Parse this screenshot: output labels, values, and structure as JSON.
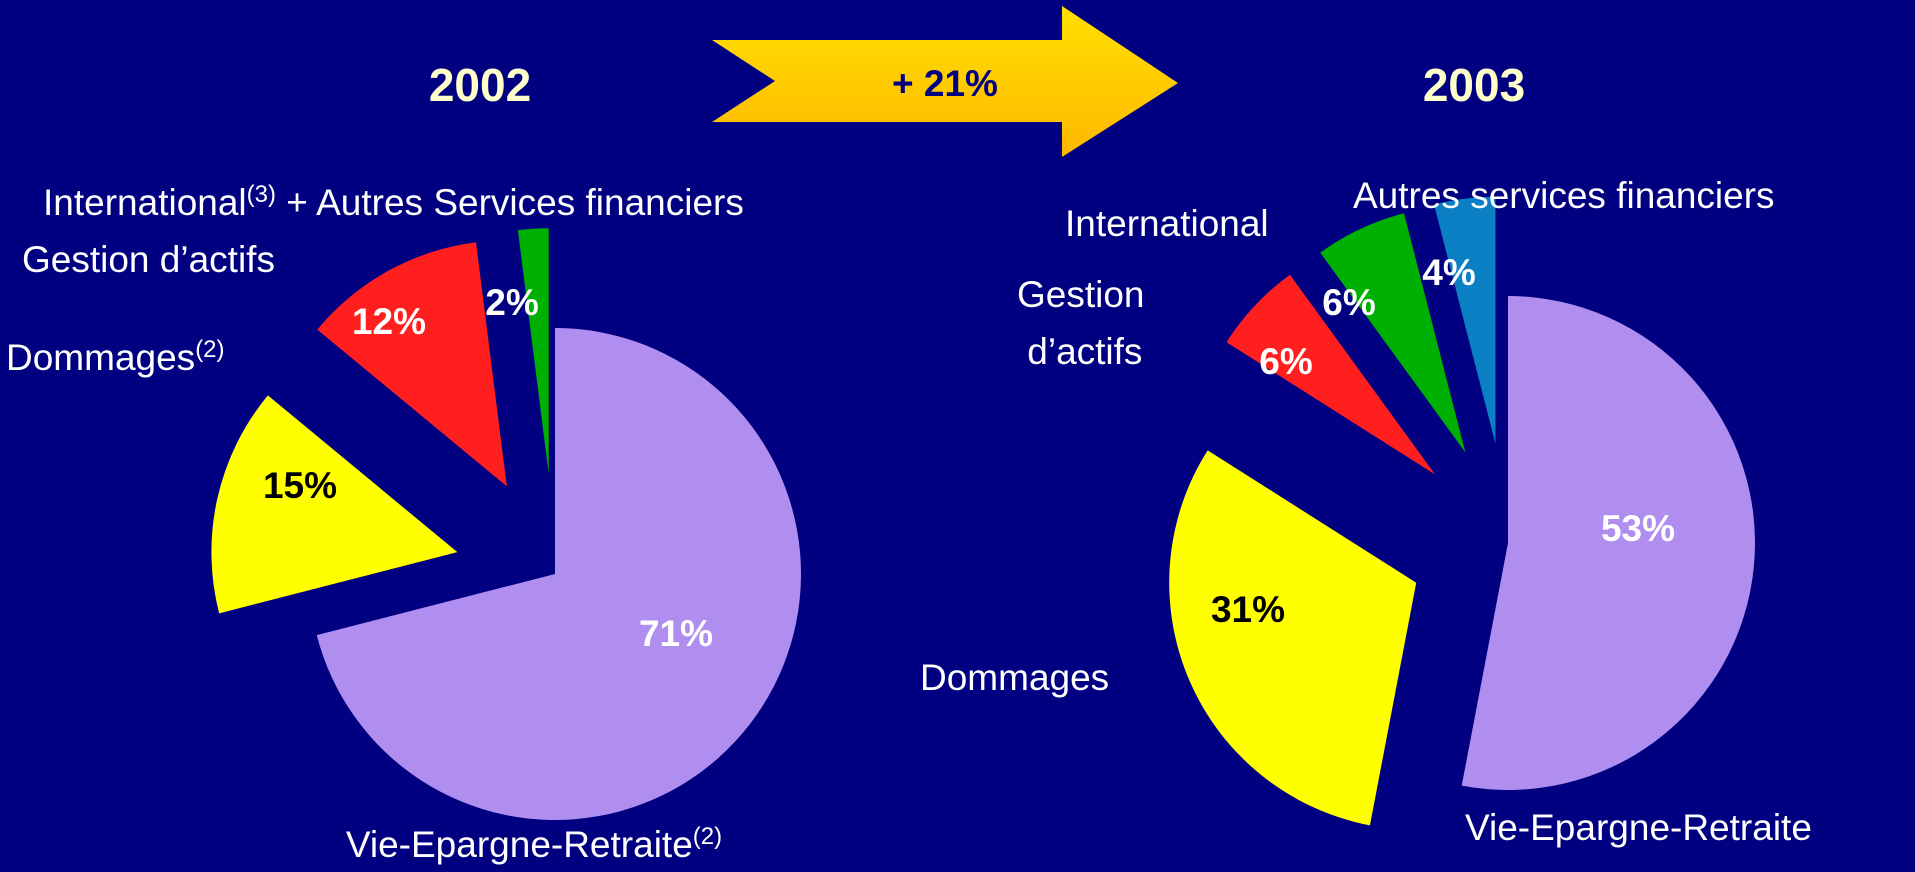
{
  "arrow_label": "+ 21%",
  "chart_data": [
    {
      "type": "pie",
      "title": "2002",
      "categories": [
        "Vie-Epargne-Retraite(2)",
        "Dommages(2)",
        "Gestion d’actifs",
        "International(3) + Autres Services financiers"
      ],
      "values": [
        71,
        15,
        12,
        2
      ],
      "value_labels": [
        "71%",
        "15%",
        "12%",
        "2%"
      ],
      "colors": [
        "#b08ef0",
        "#ffff00",
        "#ff1f1f",
        "#00b000"
      ]
    },
    {
      "type": "pie",
      "title": "2003",
      "categories": [
        "Vie-Epargne-Retraite",
        "Dommages",
        "Gestion d’actifs",
        "International",
        "Autres services financiers"
      ],
      "values": [
        53,
        31,
        6,
        6,
        4
      ],
      "value_labels": [
        "53%",
        "31%",
        "6%",
        "6%",
        "4%"
      ],
      "colors": [
        "#b08ef0",
        "#ffff00",
        "#ff1f1f",
        "#00b000",
        "#0a7fc4"
      ]
    }
  ]
}
